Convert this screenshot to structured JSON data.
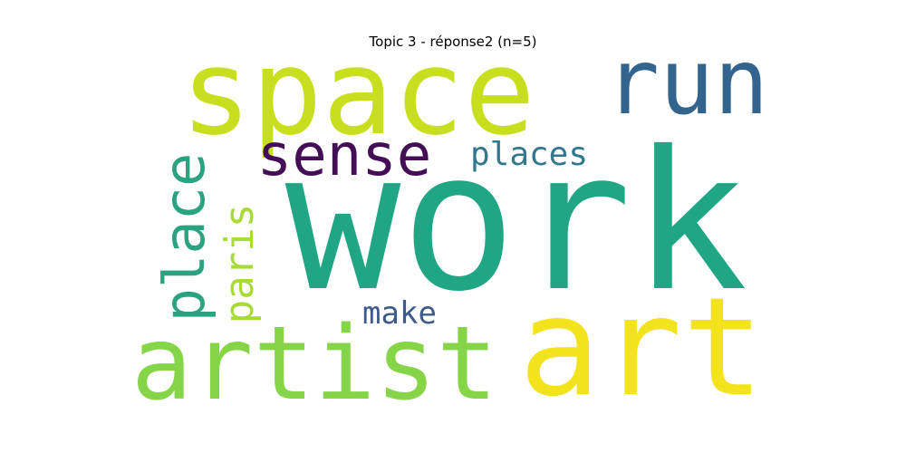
{
  "title": "Topic 3 - réponse2 (n=5)",
  "words": [
    {
      "key": "work",
      "text": "work",
      "color": "#21a685"
    },
    {
      "key": "space",
      "text": "space",
      "color": "#c8df20"
    },
    {
      "key": "art",
      "text": "art",
      "color": "#f2e31d"
    },
    {
      "key": "artist",
      "text": "artist",
      "color": "#86d549"
    },
    {
      "key": "run",
      "text": "run",
      "color": "#32648e"
    },
    {
      "key": "sense",
      "text": "sense",
      "color": "#440e57"
    },
    {
      "key": "place",
      "text": "place",
      "color": "#2ba280"
    },
    {
      "key": "paris",
      "text": "paris",
      "color": "#a8db35"
    },
    {
      "key": "places",
      "text": "places",
      "color": "#31778e"
    },
    {
      "key": "make",
      "text": "make",
      "color": "#3d5a8a"
    }
  ]
}
